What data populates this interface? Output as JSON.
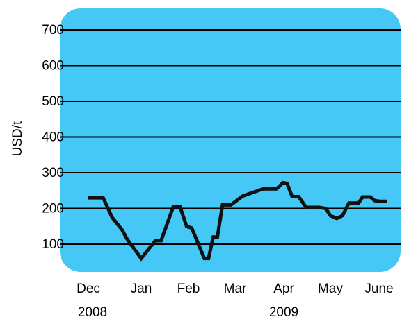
{
  "chart_data": {
    "type": "line",
    "title": "",
    "xlabel": "",
    "ylabel": "USD/t",
    "ylim": [
      0,
      700
    ],
    "y_ticks": [
      "100",
      "200",
      "300",
      "400",
      "500",
      "600",
      "700"
    ],
    "x_ticks": [
      "Dec",
      "Jan",
      "Feb",
      "Mar",
      "Apr",
      "May",
      "June"
    ],
    "x_year_labels": [
      "2008",
      "2009"
    ],
    "grid": true,
    "plot_background": "#45c8f5",
    "line_color": "#111111",
    "series": [
      {
        "x": [
          0.0,
          0.28,
          0.45,
          0.64,
          0.73,
          1.0,
          1.3,
          1.42,
          1.68,
          1.82,
          1.96,
          2.07,
          2.34,
          2.43,
          2.53,
          2.62,
          2.65,
          2.73,
          2.91,
          3.16,
          3.58,
          3.85,
          3.91,
          3.98,
          4.07,
          4.18,
          4.32,
          4.48,
          4.76,
          4.9,
          5.0,
          5.13,
          5.25,
          5.38,
          5.58,
          5.66,
          5.82,
          5.91,
          6.02,
          6.17
        ],
        "y": [
          230,
          230,
          175,
          140,
          115,
          60,
          110,
          110,
          205,
          205,
          150,
          145,
          60,
          60,
          120,
          120,
          145,
          210,
          210,
          235,
          255,
          255,
          262,
          272,
          270,
          233,
          233,
          203,
          203,
          200,
          180,
          172,
          180,
          215,
          215,
          232,
          232,
          222,
          220,
          220
        ]
      }
    ]
  }
}
